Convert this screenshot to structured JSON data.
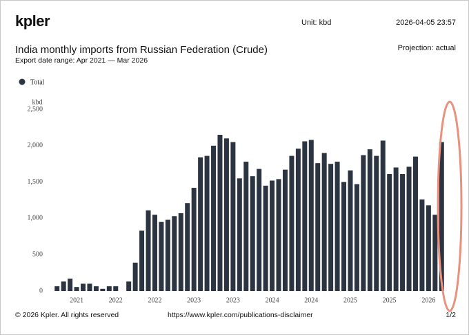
{
  "header": {
    "logo": "kpler",
    "unit": "Unit: kbd",
    "timestamp": "2026-04-05 23:57"
  },
  "chart_data": {
    "type": "bar",
    "title": "India monthly imports from Russian Federation (Crude)",
    "subtitle": "Export date range: Apr 2021 — Mar 2026",
    "projection": "Projection: actual",
    "y_label": "kbd",
    "categories": [
      null,
      null,
      null,
      "2021",
      null,
      null,
      null,
      null,
      null,
      "2022",
      null,
      null,
      null,
      null,
      null,
      "2022",
      null,
      null,
      null,
      null,
      null,
      "2023",
      null,
      null,
      null,
      null,
      null,
      "2023",
      null,
      null,
      null,
      null,
      null,
      "2024",
      null,
      null,
      null,
      null,
      null,
      "2024",
      null,
      null,
      null,
      null,
      null,
      "2025",
      null,
      null,
      null,
      null,
      null,
      "2025",
      null,
      null,
      null,
      null,
      null,
      "2026",
      null,
      null
    ],
    "series": [
      {
        "name": "Total",
        "color": "#2b3440",
        "values": [
          65,
          130,
          170,
          55,
          100,
          100,
          65,
          30,
          65,
          65,
          0,
          130,
          390,
          830,
          1110,
          1050,
          950,
          980,
          1030,
          1070,
          1210,
          1420,
          1840,
          1860,
          2000,
          2150,
          2100,
          2050,
          1550,
          1780,
          1580,
          1680,
          1450,
          1520,
          1540,
          1670,
          1860,
          1960,
          2060,
          2080,
          1760,
          1900,
          1750,
          1780,
          1500,
          1660,
          1470,
          1870,
          1950,
          1860,
          2070,
          1610,
          1700,
          1610,
          1710,
          1850,
          1260,
          1180,
          1050,
          2050
        ]
      }
    ],
    "ylim": [
      0,
      2500
    ],
    "yticks": [
      0,
      500,
      {
        "value": 1000,
        "label": "1,000"
      },
      {
        "value": 1500,
        "label": "1,500"
      },
      {
        "value": 2000,
        "label": "2,000"
      },
      {
        "value": 2500,
        "label": "2,500"
      }
    ]
  },
  "footer": {
    "copyright": "© 2026 Kpler. All rights reserved",
    "url": "https://www.kpler.com/publications-disclaimer",
    "page": "1/2"
  }
}
